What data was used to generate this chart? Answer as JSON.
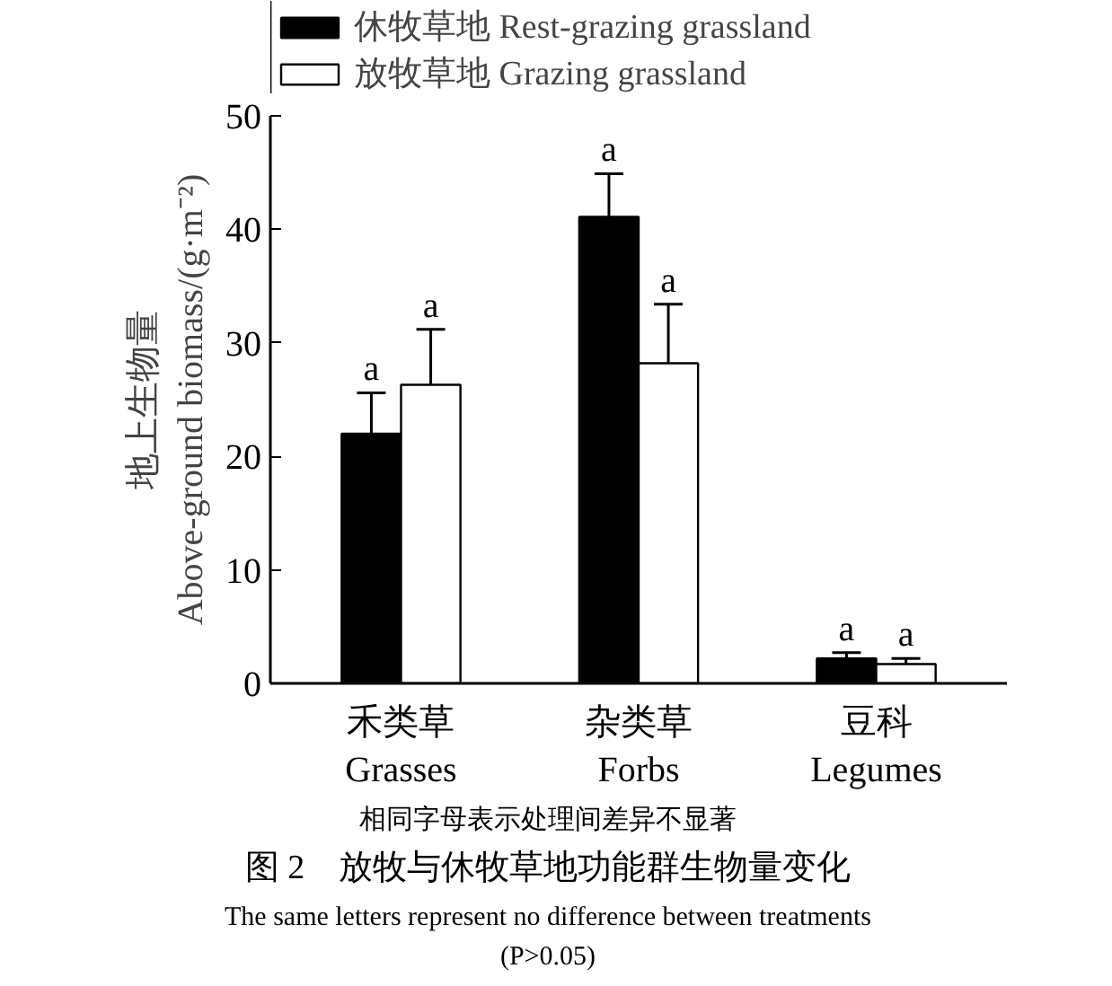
{
  "chart_data": {
    "type": "bar",
    "title": "图 2　放牧与休牧草地功能群生物量变化",
    "ylabel": "地上生物量\nAbove-ground biomass/(g·m⁻²)",
    "categories": [
      "禾类草\nGrasses",
      "杂类草\nForbs",
      "豆科\nLegumes"
    ],
    "series": [
      {
        "name": "休牧草地 Rest-grazing grassland",
        "color": "#000000",
        "values": [
          22.0,
          41.1,
          2.2
        ],
        "errors": [
          [
            22.0,
            25.6
          ],
          [
            41.1,
            44.9
          ],
          [
            2.2,
            2.7
          ]
        ],
        "value_labels": [
          "a",
          "a",
          "a"
        ]
      },
      {
        "name": "放牧草地 Grazing grassland",
        "color": "#ffffff",
        "values": [
          26.3,
          28.2,
          1.7
        ],
        "errors": [
          [
            26.3,
            31.2
          ],
          [
            28.2,
            33.4
          ],
          [
            1.7,
            2.2
          ]
        ],
        "value_labels": [
          "a",
          "a",
          "a"
        ]
      }
    ],
    "ylim": [
      0,
      50
    ],
    "yticks": [
      0,
      10,
      20,
      30,
      40,
      50
    ],
    "grid": false,
    "legend": "top left",
    "annotations": [
      "相同字母表示处理间差异不显著",
      "The same letters represent no difference between treatments (P>0.05)"
    ]
  }
}
